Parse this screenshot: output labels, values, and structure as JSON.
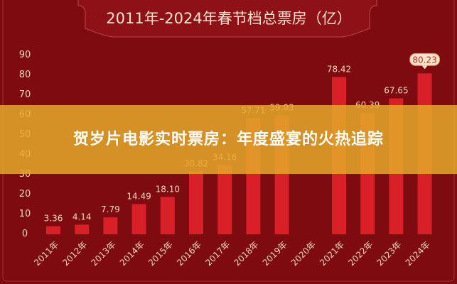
{
  "chart_data": {
    "type": "bar",
    "title": "2011年-2024年春节档总票房（亿）",
    "xlabel": "",
    "ylabel": "",
    "ylim": [
      0,
      90
    ],
    "yticks": [
      0,
      10,
      20,
      30,
      40,
      50,
      60,
      70,
      80,
      90
    ],
    "categories": [
      "2011年",
      "2012年",
      "2013年",
      "2014年",
      "2015年",
      "2016年",
      "2017年",
      "2018年",
      "2019年",
      "2020年",
      "2021年",
      "2022年",
      "2023年",
      "2024年"
    ],
    "values": [
      3.36,
      4.14,
      7.79,
      14.49,
      18.1,
      30.82,
      34.16,
      57.71,
      59.03,
      0,
      78.42,
      60.39,
      67.65,
      80.23
    ],
    "labels": [
      "3.36",
      "4.14",
      "7.79",
      "14.49",
      "18.10",
      "30.82",
      "34.16",
      "57.71",
      "59.03",
      "",
      "78.42",
      "60.39",
      "67.65",
      "80.23"
    ],
    "highlight_index": 13,
    "grid": false,
    "colors": {
      "background": "#7d0b10",
      "bar": "#d91f28",
      "text": "#f2d6bd",
      "highlight_badge": "#fbe3cc"
    }
  },
  "overlay": {
    "headline": "贺岁片电影实时票房：年度盛宴的火热追踪"
  }
}
